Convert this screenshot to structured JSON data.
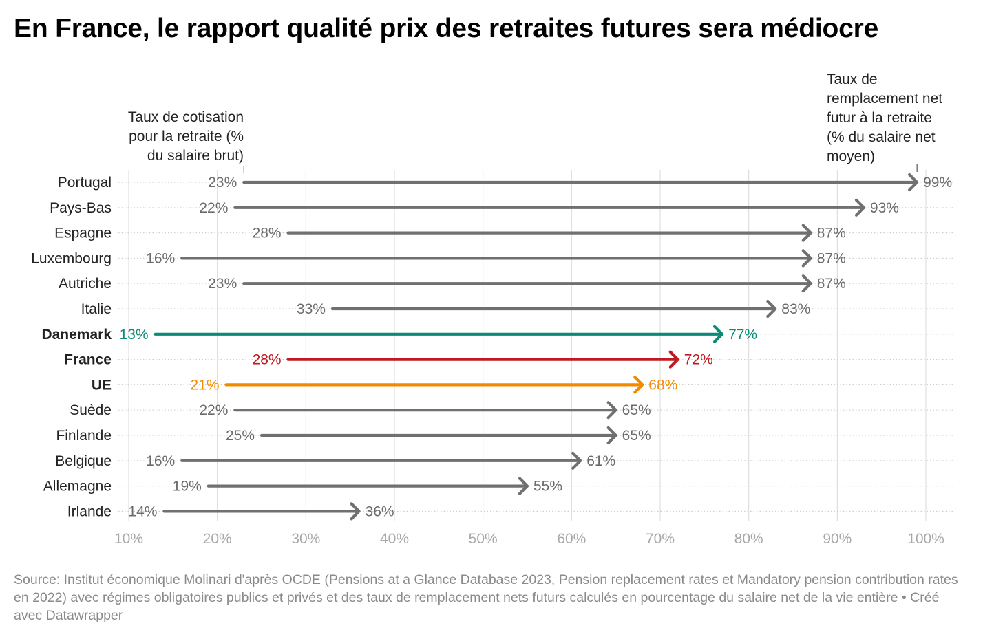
{
  "title": "En France, le rapport qualité prix des retraites futures sera médiocre",
  "source": "Source: Institut économique Molinari d'après OCDE (Pensions at a Glance Database 2023, Pension replacement rates et Mandatory pension contribution rates en 2022) avec régimes obligatoires publics et privés et des taux de remplacement nets futurs calculés en pourcentage du salaire net de la vie entière • Créé avec Datawrapper",
  "colors": {
    "default": "#707070",
    "highlight_dk": "#0a8a77",
    "highlight_fr": "#c0191f",
    "highlight_ue": "#f28a00",
    "grid": "#d9d9d9",
    "tick_label": "#a8a8a8"
  },
  "chart_data": {
    "type": "arrow",
    "annotations": {
      "start": [
        "Taux de cotisation",
        "pour la retraite (%",
        "du salaire brut)"
      ],
      "end": [
        "Taux de",
        "remplacement net",
        "futur à la retraite",
        "(% du salaire net",
        "moyen)"
      ]
    },
    "xlim": [
      10,
      100
    ],
    "xticks": [
      10,
      20,
      30,
      40,
      50,
      60,
      70,
      80,
      90,
      100
    ],
    "xtick_labels": [
      "10%",
      "20%",
      "30%",
      "40%",
      "50%",
      "60%",
      "70%",
      "80%",
      "90%",
      "100%"
    ],
    "grid": true,
    "rows": [
      {
        "label": "Portugal",
        "start": 23,
        "end": 99,
        "start_label": "23%",
        "end_label": "99%",
        "bold": false,
        "color": "default"
      },
      {
        "label": "Pays-Bas",
        "start": 22,
        "end": 93,
        "start_label": "22%",
        "end_label": "93%",
        "bold": false,
        "color": "default"
      },
      {
        "label": "Espagne",
        "start": 28,
        "end": 87,
        "start_label": "28%",
        "end_label": "87%",
        "bold": false,
        "color": "default"
      },
      {
        "label": "Luxembourg",
        "start": 16,
        "end": 87,
        "start_label": "16%",
        "end_label": "87%",
        "bold": false,
        "color": "default"
      },
      {
        "label": "Autriche",
        "start": 23,
        "end": 87,
        "start_label": "23%",
        "end_label": "87%",
        "bold": false,
        "color": "default"
      },
      {
        "label": "Italie",
        "start": 33,
        "end": 83,
        "start_label": "33%",
        "end_label": "83%",
        "bold": false,
        "color": "default"
      },
      {
        "label": "Danemark",
        "start": 13,
        "end": 77,
        "start_label": "13%",
        "end_label": "77%",
        "bold": true,
        "color": "highlight_dk"
      },
      {
        "label": "France",
        "start": 28,
        "end": 72,
        "start_label": "28%",
        "end_label": "72%",
        "bold": true,
        "color": "highlight_fr"
      },
      {
        "label": "UE",
        "start": 21,
        "end": 68,
        "start_label": "21%",
        "end_label": "68%",
        "bold": true,
        "color": "highlight_ue"
      },
      {
        "label": "Suède",
        "start": 22,
        "end": 65,
        "start_label": "22%",
        "end_label": "65%",
        "bold": false,
        "color": "default"
      },
      {
        "label": "Finlande",
        "start": 25,
        "end": 65,
        "start_label": "25%",
        "end_label": "65%",
        "bold": false,
        "color": "default"
      },
      {
        "label": "Belgique",
        "start": 16,
        "end": 61,
        "start_label": "16%",
        "end_label": "61%",
        "bold": false,
        "color": "default"
      },
      {
        "label": "Allemagne",
        "start": 19,
        "end": 55,
        "start_label": "19%",
        "end_label": "55%",
        "bold": false,
        "color": "default"
      },
      {
        "label": "Irlande",
        "start": 14,
        "end": 36,
        "start_label": "14%",
        "end_label": "36%",
        "bold": false,
        "color": "default"
      }
    ]
  }
}
